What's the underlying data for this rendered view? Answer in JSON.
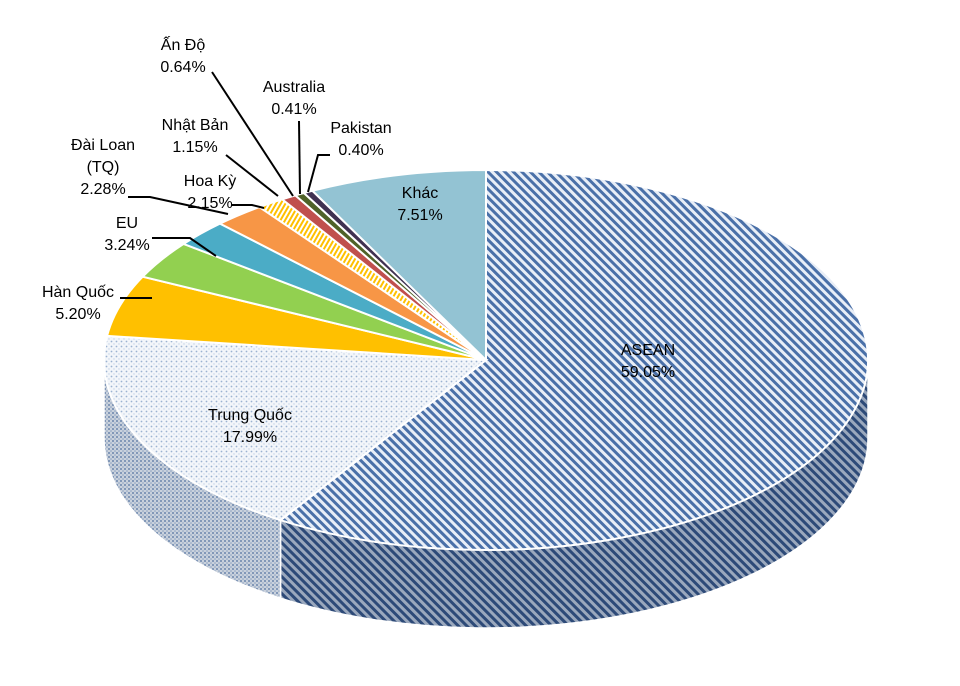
{
  "chart_data": {
    "type": "pie",
    "style": "3d",
    "legend": "none",
    "slices": [
      {
        "name": "ASEAN",
        "label": "ASEAN",
        "pct_label": "59.05%",
        "value": 59.05,
        "color": "#4A70A8",
        "fill_style": "diagonal-hatch"
      },
      {
        "name": "Trung Quốc",
        "label": "Trung Quốc",
        "pct_label": "17.99%",
        "value": 17.99,
        "color": "#B8CCE4",
        "fill_style": "dotted"
      },
      {
        "name": "Hàn Quốc",
        "label": "Hàn Quốc",
        "pct_label": "5.20%",
        "value": 5.2,
        "color": "#FFC000",
        "fill_style": "solid"
      },
      {
        "name": "EU",
        "label": "EU",
        "pct_label": "3.24%",
        "value": 3.24,
        "color": "#92D050",
        "fill_style": "solid"
      },
      {
        "name": "Đài Loan (TQ)",
        "label": "Đài Loan (TQ)",
        "pct_label": "2.28%",
        "value": 2.28,
        "color": "#4BACC6",
        "fill_style": "solid"
      },
      {
        "name": "Hoa Kỳ",
        "label": "Hoa Kỳ",
        "pct_label": "2.15%",
        "value": 2.15,
        "color": "#F79646",
        "fill_style": "solid"
      },
      {
        "name": "Nhật Bản",
        "label": "Nhật Bản",
        "pct_label": "1.15%",
        "value": 1.15,
        "color": "#FFC000",
        "fill_style": "stripes"
      },
      {
        "name": "Ấn Độ",
        "label": "Ấn Độ",
        "pct_label": "0.64%",
        "value": 0.64,
        "color": "#C0504D",
        "fill_style": "solid"
      },
      {
        "name": "Australia",
        "label": "Australia",
        "pct_label": "0.41%",
        "value": 0.41,
        "color": "#4F6228",
        "fill_style": "solid"
      },
      {
        "name": "Pakistan",
        "label": "Pakistan",
        "pct_label": "0.40%",
        "value": 0.4,
        "color": "#403151",
        "fill_style": "solid"
      },
      {
        "name": "Khác",
        "label": "Khác",
        "pct_label": "7.51%",
        "value": 7.51,
        "color": "#93C3D3",
        "fill_style": "solid"
      }
    ]
  }
}
